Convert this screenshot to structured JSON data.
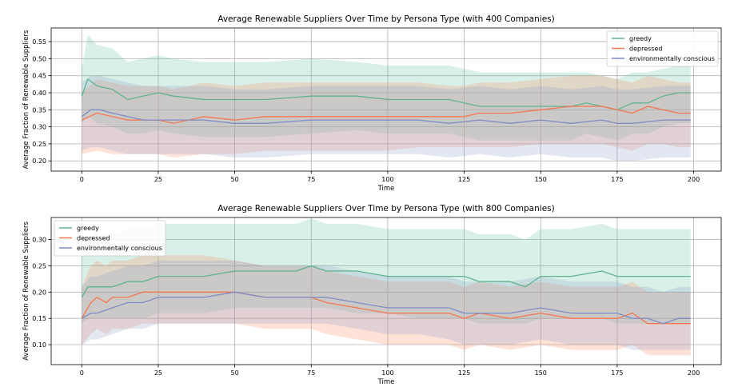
{
  "chart_data": [
    {
      "type": "line",
      "title": "Average Renewable Suppliers Over Time by Persona Type (with 400 Companies)",
      "xlabel": "Time",
      "ylabel": "Average Fraction of Renewable Suppliers",
      "xlim": [
        -10,
        209
      ],
      "ylim": [
        0.17,
        0.59
      ],
      "xticks": [
        0,
        25,
        50,
        75,
        100,
        125,
        150,
        175,
        200
      ],
      "xtick_labels": [
        "0",
        "25",
        "50",
        "75",
        "100",
        "125",
        "150",
        "175",
        "200"
      ],
      "yticks": [
        0.2,
        0.25,
        0.3,
        0.35,
        0.4,
        0.45,
        0.5,
        0.55
      ],
      "ytick_labels": [
        "0.20",
        "0.25",
        "0.30",
        "0.35",
        "0.40",
        "0.45",
        "0.50",
        "0.55"
      ],
      "grid": true,
      "legend_position": "top-right",
      "series": [
        {
          "name": "greedy",
          "color": "#5fb38d",
          "band_color": "#66c2a5",
          "x": [
            0,
            2,
            5,
            10,
            15,
            20,
            25,
            30,
            40,
            50,
            60,
            75,
            90,
            100,
            110,
            120,
            125,
            130,
            140,
            150,
            160,
            165,
            170,
            175,
            180,
            185,
            190,
            195,
            199
          ],
          "values": [
            0.39,
            0.44,
            0.42,
            0.41,
            0.38,
            0.39,
            0.4,
            0.39,
            0.38,
            0.38,
            0.38,
            0.39,
            0.39,
            0.38,
            0.38,
            0.38,
            0.37,
            0.36,
            0.36,
            0.36,
            0.36,
            0.37,
            0.36,
            0.35,
            0.37,
            0.37,
            0.39,
            0.4,
            0.4
          ],
          "upper": [
            0.47,
            0.57,
            0.54,
            0.53,
            0.49,
            0.5,
            0.51,
            0.5,
            0.49,
            0.49,
            0.49,
            0.5,
            0.49,
            0.48,
            0.48,
            0.48,
            0.47,
            0.46,
            0.46,
            0.46,
            0.46,
            0.46,
            0.45,
            0.44,
            0.46,
            0.46,
            0.47,
            0.48,
            0.48
          ],
          "lower": [
            0.31,
            0.33,
            0.31,
            0.3,
            0.28,
            0.28,
            0.29,
            0.28,
            0.27,
            0.27,
            0.27,
            0.28,
            0.29,
            0.28,
            0.28,
            0.28,
            0.27,
            0.26,
            0.26,
            0.26,
            0.26,
            0.28,
            0.27,
            0.26,
            0.28,
            0.28,
            0.3,
            0.31,
            0.31
          ]
        },
        {
          "name": "depressed",
          "color": "#f4774f",
          "band_color": "#fc8d62",
          "x": [
            0,
            5,
            10,
            15,
            20,
            25,
            30,
            40,
            50,
            60,
            75,
            90,
            100,
            110,
            120,
            125,
            130,
            140,
            150,
            160,
            170,
            175,
            180,
            185,
            190,
            195,
            199
          ],
          "values": [
            0.32,
            0.34,
            0.33,
            0.32,
            0.32,
            0.32,
            0.31,
            0.33,
            0.32,
            0.33,
            0.33,
            0.33,
            0.33,
            0.33,
            0.33,
            0.33,
            0.34,
            0.34,
            0.35,
            0.36,
            0.36,
            0.35,
            0.34,
            0.36,
            0.35,
            0.34,
            0.34
          ],
          "upper": [
            0.4,
            0.44,
            0.43,
            0.42,
            0.42,
            0.42,
            0.41,
            0.43,
            0.42,
            0.43,
            0.43,
            0.43,
            0.43,
            0.43,
            0.42,
            0.42,
            0.43,
            0.43,
            0.44,
            0.45,
            0.45,
            0.44,
            0.43,
            0.45,
            0.44,
            0.43,
            0.43
          ],
          "lower": [
            0.22,
            0.23,
            0.22,
            0.22,
            0.22,
            0.22,
            0.21,
            0.22,
            0.22,
            0.23,
            0.23,
            0.23,
            0.23,
            0.24,
            0.24,
            0.24,
            0.24,
            0.24,
            0.25,
            0.25,
            0.25,
            0.24,
            0.23,
            0.25,
            0.25,
            0.24,
            0.24
          ]
        },
        {
          "name": "environmentally conscious",
          "color": "#7d8cc4",
          "band_color": "#8da0cb",
          "x": [
            0,
            3,
            6,
            10,
            15,
            20,
            25,
            30,
            40,
            50,
            60,
            75,
            90,
            100,
            110,
            120,
            130,
            140,
            150,
            160,
            170,
            175,
            180,
            190,
            195,
            199
          ],
          "values": [
            0.33,
            0.35,
            0.35,
            0.34,
            0.33,
            0.32,
            0.32,
            0.32,
            0.32,
            0.31,
            0.31,
            0.32,
            0.32,
            0.32,
            0.32,
            0.31,
            0.32,
            0.31,
            0.32,
            0.31,
            0.32,
            0.31,
            0.31,
            0.32,
            0.32,
            0.32
          ],
          "upper": [
            0.43,
            0.45,
            0.45,
            0.44,
            0.43,
            0.42,
            0.42,
            0.42,
            0.42,
            0.41,
            0.41,
            0.42,
            0.42,
            0.42,
            0.42,
            0.41,
            0.42,
            0.41,
            0.42,
            0.41,
            0.42,
            0.41,
            0.41,
            0.42,
            0.42,
            0.42
          ],
          "lower": [
            0.23,
            0.24,
            0.24,
            0.23,
            0.22,
            0.22,
            0.22,
            0.22,
            0.22,
            0.21,
            0.21,
            0.22,
            0.22,
            0.22,
            0.22,
            0.21,
            0.22,
            0.21,
            0.22,
            0.21,
            0.21,
            0.2,
            0.2,
            0.21,
            0.21,
            0.21
          ]
        }
      ]
    },
    {
      "type": "line",
      "title": "Average Renewable Suppliers Over Time by Persona Type (with 800 Companies)",
      "xlabel": "Time",
      "ylabel": "Average Fraction of Renewable Suppliers",
      "xlim": [
        -10,
        209
      ],
      "ylim": [
        0.062,
        0.342
      ],
      "xticks": [
        0,
        25,
        50,
        75,
        100,
        125,
        150,
        175,
        200
      ],
      "xtick_labels": [
        "0",
        "25",
        "50",
        "75",
        "100",
        "125",
        "150",
        "175",
        "200"
      ],
      "yticks": [
        0.1,
        0.15,
        0.2,
        0.25,
        0.3
      ],
      "ytick_labels": [
        "0.10",
        "0.15",
        "0.20",
        "0.25",
        "0.30"
      ],
      "grid": true,
      "legend_position": "top-left",
      "series": [
        {
          "name": "greedy",
          "color": "#5fb38d",
          "band_color": "#66c2a5",
          "x": [
            0,
            2,
            5,
            10,
            15,
            20,
            25,
            30,
            40,
            50,
            60,
            70,
            75,
            80,
            90,
            100,
            110,
            120,
            125,
            130,
            140,
            145,
            150,
            160,
            170,
            175,
            180,
            190,
            195,
            199
          ],
          "values": [
            0.19,
            0.21,
            0.21,
            0.21,
            0.22,
            0.22,
            0.23,
            0.23,
            0.23,
            0.24,
            0.24,
            0.24,
            0.25,
            0.24,
            0.24,
            0.23,
            0.23,
            0.23,
            0.23,
            0.22,
            0.22,
            0.21,
            0.23,
            0.23,
            0.24,
            0.23,
            0.23,
            0.23,
            0.23,
            0.23
          ],
          "upper": [
            0.28,
            0.3,
            0.31,
            0.31,
            0.32,
            0.32,
            0.33,
            0.33,
            0.33,
            0.33,
            0.33,
            0.33,
            0.34,
            0.33,
            0.33,
            0.32,
            0.32,
            0.32,
            0.32,
            0.31,
            0.31,
            0.3,
            0.32,
            0.32,
            0.33,
            0.32,
            0.32,
            0.32,
            0.32,
            0.32
          ],
          "lower": [
            0.14,
            0.15,
            0.15,
            0.15,
            0.15,
            0.15,
            0.16,
            0.16,
            0.16,
            0.17,
            0.17,
            0.17,
            0.17,
            0.17,
            0.16,
            0.16,
            0.15,
            0.15,
            0.15,
            0.14,
            0.14,
            0.14,
            0.15,
            0.15,
            0.15,
            0.14,
            0.14,
            0.14,
            0.14,
            0.14
          ]
        },
        {
          "name": "depressed",
          "color": "#f4774f",
          "band_color": "#fc8d62",
          "x": [
            0,
            3,
            5,
            8,
            10,
            15,
            20,
            25,
            30,
            40,
            50,
            60,
            75,
            80,
            90,
            100,
            110,
            120,
            125,
            130,
            140,
            150,
            160,
            170,
            175,
            180,
            185,
            190,
            195,
            199
          ],
          "values": [
            0.15,
            0.18,
            0.19,
            0.18,
            0.19,
            0.19,
            0.2,
            0.2,
            0.2,
            0.2,
            0.2,
            0.19,
            0.19,
            0.18,
            0.17,
            0.16,
            0.16,
            0.16,
            0.15,
            0.16,
            0.15,
            0.16,
            0.15,
            0.15,
            0.15,
            0.16,
            0.14,
            0.14,
            0.14,
            0.14
          ],
          "upper": [
            0.21,
            0.25,
            0.26,
            0.25,
            0.26,
            0.26,
            0.27,
            0.27,
            0.27,
            0.27,
            0.26,
            0.25,
            0.25,
            0.24,
            0.23,
            0.22,
            0.22,
            0.22,
            0.21,
            0.22,
            0.21,
            0.22,
            0.21,
            0.21,
            0.21,
            0.22,
            0.2,
            0.2,
            0.2,
            0.2
          ],
          "lower": [
            0.1,
            0.12,
            0.13,
            0.12,
            0.13,
            0.13,
            0.14,
            0.14,
            0.14,
            0.14,
            0.14,
            0.13,
            0.13,
            0.12,
            0.11,
            0.1,
            0.1,
            0.1,
            0.09,
            0.1,
            0.09,
            0.1,
            0.09,
            0.09,
            0.09,
            0.1,
            0.08,
            0.08,
            0.08,
            0.08
          ]
        },
        {
          "name": "environmentally conscious",
          "color": "#7d8cc4",
          "band_color": "#8da0cb",
          "x": [
            0,
            3,
            5,
            10,
            15,
            20,
            25,
            30,
            40,
            50,
            60,
            75,
            80,
            90,
            100,
            110,
            120,
            125,
            130,
            140,
            150,
            160,
            170,
            175,
            180,
            185,
            190,
            195,
            199
          ],
          "values": [
            0.15,
            0.16,
            0.16,
            0.17,
            0.18,
            0.18,
            0.19,
            0.19,
            0.19,
            0.2,
            0.19,
            0.19,
            0.19,
            0.18,
            0.17,
            0.17,
            0.17,
            0.16,
            0.16,
            0.16,
            0.17,
            0.16,
            0.16,
            0.16,
            0.15,
            0.15,
            0.14,
            0.15,
            0.15
          ],
          "upper": [
            0.21,
            0.23,
            0.23,
            0.24,
            0.25,
            0.25,
            0.26,
            0.26,
            0.26,
            0.26,
            0.25,
            0.25,
            0.25,
            0.24,
            0.23,
            0.23,
            0.23,
            0.22,
            0.22,
            0.22,
            0.23,
            0.22,
            0.22,
            0.22,
            0.21,
            0.21,
            0.2,
            0.21,
            0.21
          ],
          "lower": [
            0.1,
            0.11,
            0.11,
            0.12,
            0.13,
            0.13,
            0.14,
            0.14,
            0.14,
            0.14,
            0.14,
            0.14,
            0.14,
            0.13,
            0.12,
            0.12,
            0.11,
            0.1,
            0.1,
            0.1,
            0.11,
            0.1,
            0.1,
            0.1,
            0.09,
            0.09,
            0.09,
            0.09,
            0.09
          ]
        }
      ]
    }
  ]
}
